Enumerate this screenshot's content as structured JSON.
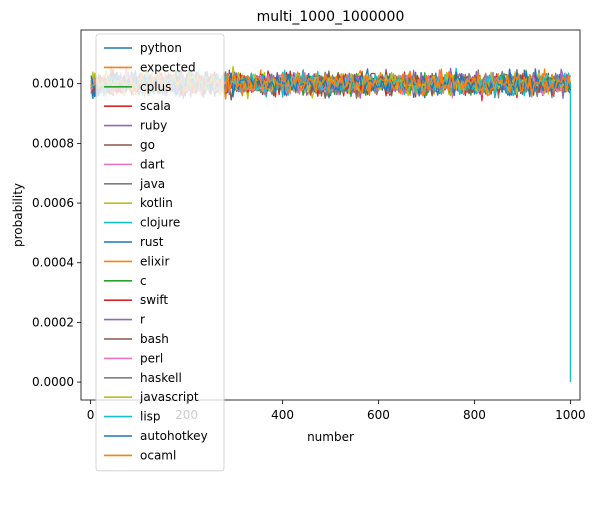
{
  "chart_data": {
    "type": "line",
    "title": "multi_1000_1000000",
    "xlabel": "number",
    "ylabel": "probability",
    "xlim": [
      -20,
      1020
    ],
    "ylim": [
      -6e-05,
      0.00118
    ],
    "x_ticks": [
      0,
      200,
      400,
      600,
      800,
      1000
    ],
    "x_tick_labels": [
      "0",
      "200",
      "400",
      "600",
      "800",
      "1000"
    ],
    "y_ticks": [
      0.0,
      0.0002,
      0.0004,
      0.0006,
      0.0008,
      0.001
    ],
    "y_tick_labels": [
      "0.0000",
      "0.0002",
      "0.0004",
      "0.0006",
      "0.0008",
      "0.0010"
    ],
    "grid": false,
    "legend_position": "upper-left",
    "x_range": [
      1,
      1000
    ],
    "typical_value": 0.001,
    "typical_band": [
      0.0009,
      0.00108
    ],
    "series": [
      {
        "name": "python",
        "color": "#1f77b4"
      },
      {
        "name": "expected",
        "color": "#ff7f0e"
      },
      {
        "name": "cplus",
        "color": "#2ca02c"
      },
      {
        "name": "scala",
        "color": "#d62728"
      },
      {
        "name": "ruby",
        "color": "#9467bd"
      },
      {
        "name": "go",
        "color": "#8c564b"
      },
      {
        "name": "dart",
        "color": "#e377c2"
      },
      {
        "name": "java",
        "color": "#7f7f7f"
      },
      {
        "name": "kotlin",
        "color": "#bcbd22"
      },
      {
        "name": "clojure",
        "color": "#17becf"
      },
      {
        "name": "rust",
        "color": "#1f77b4"
      },
      {
        "name": "elixir",
        "color": "#ff7f0e"
      },
      {
        "name": "c",
        "color": "#2ca02c"
      },
      {
        "name": "swift",
        "color": "#d62728"
      },
      {
        "name": "r",
        "color": "#9467bd"
      },
      {
        "name": "bash",
        "color": "#8c564b"
      },
      {
        "name": "perl",
        "color": "#e377c2"
      },
      {
        "name": "haskell",
        "color": "#7f7f7f"
      },
      {
        "name": "javascript",
        "color": "#bcbd22"
      },
      {
        "name": "lisp",
        "color": "#17becf"
      },
      {
        "name": "autohotkey",
        "color": "#1f77b4"
      },
      {
        "name": "ocaml",
        "color": "#ff7f0e"
      }
    ],
    "annotations": [
      {
        "series": "lisp",
        "x": 1000,
        "y": 0.0,
        "note": "drop"
      }
    ]
  }
}
